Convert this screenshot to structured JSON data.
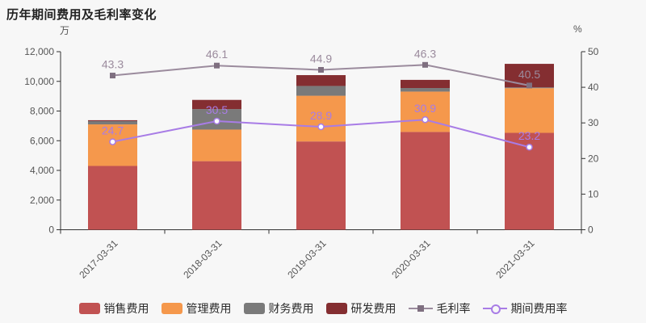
{
  "title": "历年期间费用及毛利率变化",
  "colors": {
    "background": "#f7f7f7",
    "axis": "#333333",
    "tick_text": "#555555"
  },
  "chart_data": {
    "type": "bar-line-combo",
    "title": "历年期间费用及毛利率变化",
    "categories": [
      "2017-03-31",
      "2018-03-31",
      "2019-03-31",
      "2020-03-31",
      "2021-03-31"
    ],
    "left_axis": {
      "unit": "万",
      "min": 0,
      "max": 12000,
      "tick_labels": [
        "0",
        "2,000",
        "4,000",
        "6,000",
        "8,000",
        "10,000",
        "12,000"
      ]
    },
    "right_axis": {
      "unit": "%",
      "min": 0,
      "max": 50,
      "tick_labels": [
        "0",
        "10",
        "20",
        "30",
        "40",
        "50"
      ]
    },
    "bar_series": [
      {
        "name": "销售费用",
        "color": "#c15252",
        "stack": "expenses",
        "values": [
          4300,
          4620,
          5950,
          6590,
          6530
        ]
      },
      {
        "name": "管理费用",
        "color": "#f5984c",
        "stack": "expenses",
        "values": [
          2800,
          2130,
          3080,
          2720,
          3010
        ]
      },
      {
        "name": "财务费用",
        "color": "#7a7a7a",
        "stack": "expenses",
        "values": [
          220,
          1380,
          660,
          240,
          50
        ]
      },
      {
        "name": "研发费用",
        "color": "#842e31",
        "stack": "expenses",
        "values": [
          60,
          620,
          730,
          550,
          1590
        ]
      }
    ],
    "line_series": [
      {
        "name": "毛利率",
        "color": "#9b8b9d",
        "marker": "square",
        "marker_color": "#7f6f80",
        "axis": "right",
        "values": [
          43.3,
          46.1,
          44.9,
          46.3,
          40.5
        ]
      },
      {
        "name": "期间费用率",
        "color": "#a87ce6",
        "marker": "circle-hollow",
        "marker_color": "#ffffff",
        "axis": "right",
        "values": [
          24.7,
          30.5,
          28.9,
          30.9,
          23.2
        ]
      }
    ],
    "legend": [
      "销售费用",
      "管理费用",
      "财务费用",
      "研发费用",
      "毛利率",
      "期间费用率"
    ],
    "legend_position": "bottom",
    "grid": false
  }
}
